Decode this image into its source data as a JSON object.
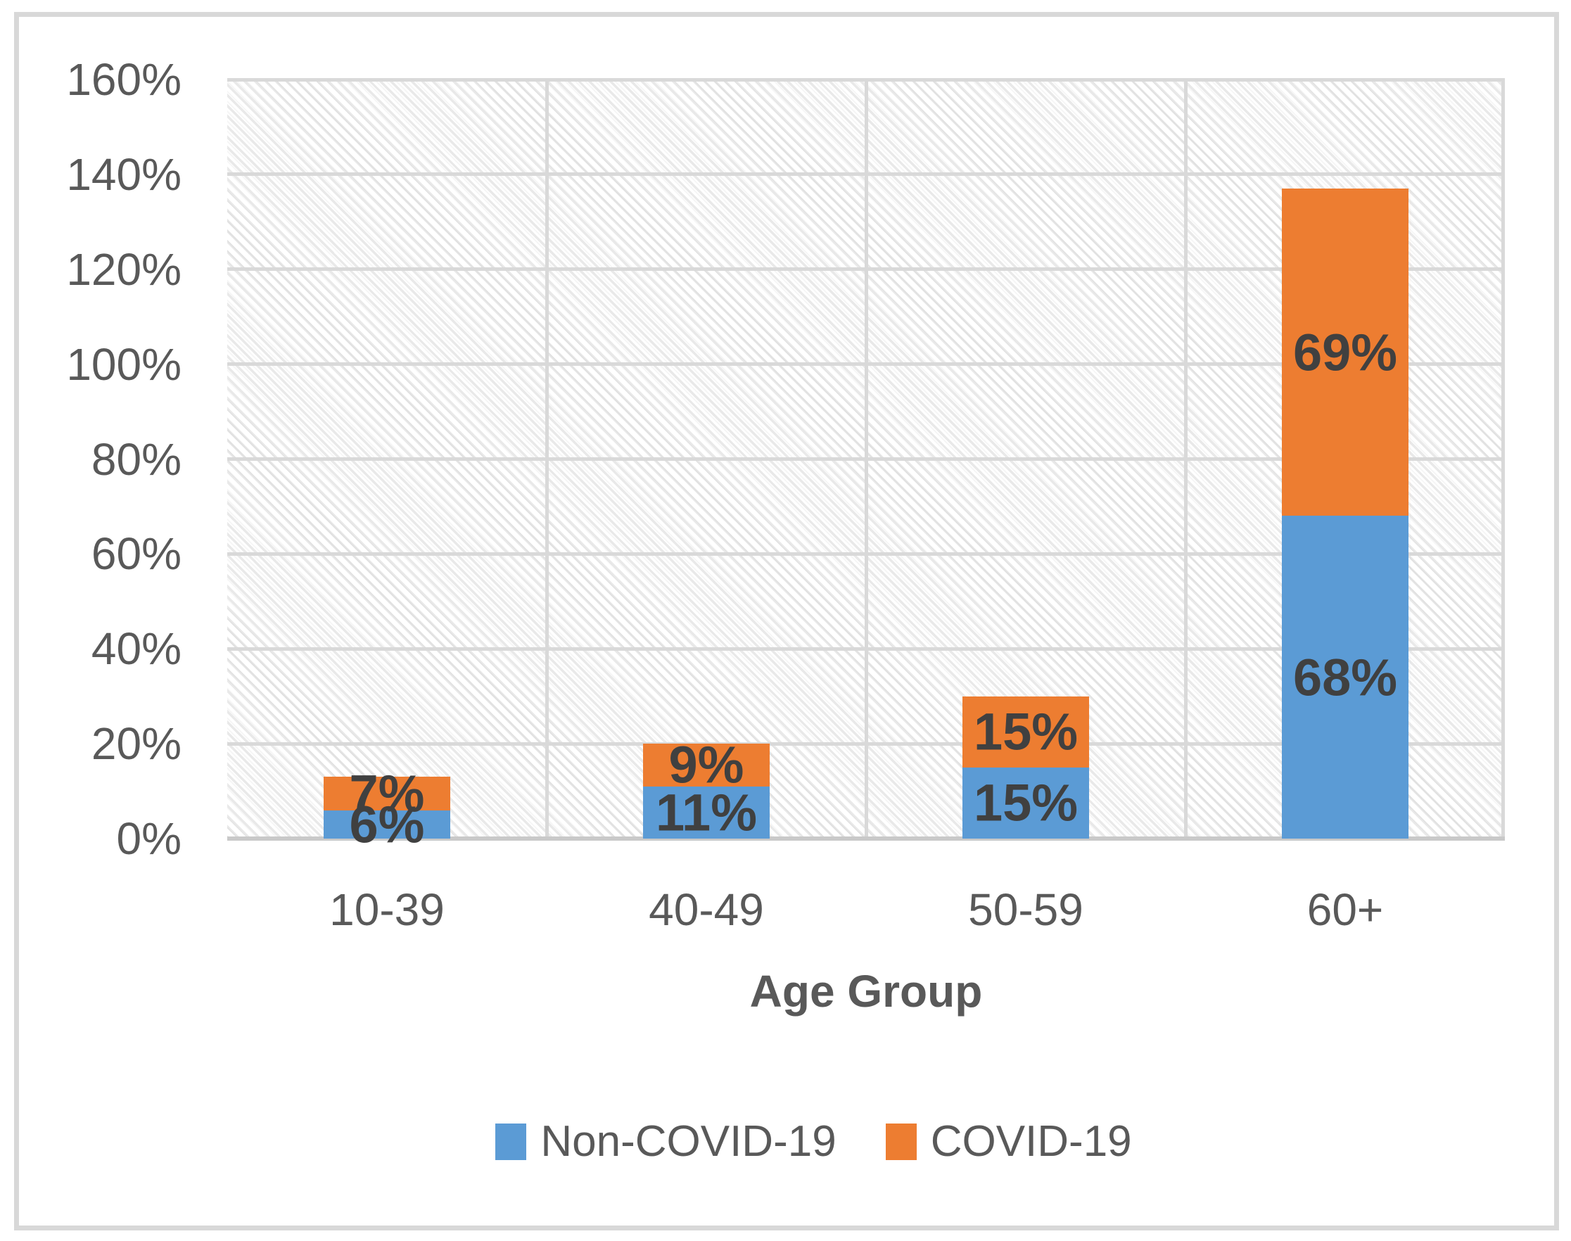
{
  "figure": {
    "background": "#ffffff",
    "border_color": "#d8d8d8"
  },
  "chart_data": {
    "type": "bar",
    "stacked": true,
    "title": "",
    "categories": [
      "10-39",
      "40-49",
      "50-59",
      "60+"
    ],
    "series": [
      {
        "name": "Non-COVID-19",
        "color": "#5B9BD5",
        "values": [
          6,
          11,
          15,
          68
        ],
        "data_labels": [
          "6%",
          "11%",
          "15%",
          "68%"
        ]
      },
      {
        "name": "COVID-19",
        "color": "#ED7D31",
        "values": [
          7,
          9,
          15,
          69
        ],
        "data_labels": [
          "7%",
          "9%",
          "15%",
          "69%"
        ]
      }
    ],
    "totals": [
      13,
      20,
      30,
      137
    ],
    "xlabel": "Age Group",
    "ylabel": "",
    "y_axis": {
      "min": 0,
      "max": 160,
      "step": 20,
      "tick_labels": [
        "0%",
        "20%",
        "40%",
        "60%",
        "80%",
        "100%",
        "120%",
        "140%",
        "160%"
      ]
    },
    "legend": {
      "position": "bottom",
      "entries": [
        "Non-COVID-19",
        "COVID-19"
      ]
    },
    "grid": {
      "horizontal": true,
      "vertical": true,
      "color": "#D9D9D9"
    },
    "plot_background": "diagonal-hatch",
    "colors": {
      "tick_text": "#595959",
      "data_label_text": "#404040",
      "axis_line": "#C9C9C9",
      "gridline": "#D9D9D9"
    }
  }
}
